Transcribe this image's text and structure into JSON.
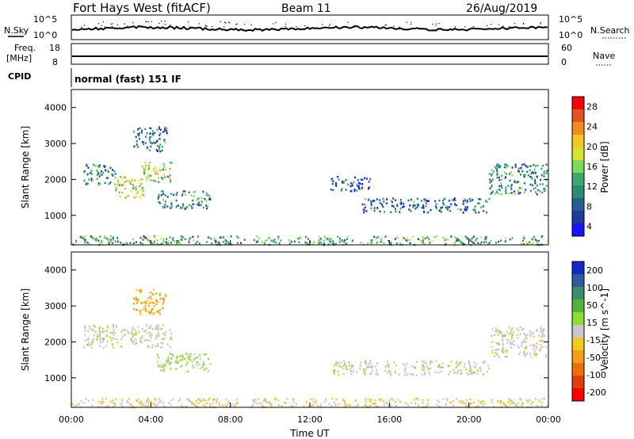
{
  "header": {
    "title": "Fort Hays West (fitACF)",
    "beam": "Beam 11",
    "date": "26/Aug/2019"
  },
  "strip_labels": {
    "nsky": "N.Sky",
    "nsearch": "N.Search",
    "freq": "Freq.",
    "freq_unit": "[MHz]",
    "nave": "Nave",
    "cpid": "CPID",
    "cpid_value": "normal (fast) 151 IF"
  },
  "noise_axis": {
    "left_ticks": [
      "10^5",
      "10^0"
    ],
    "right_ticks": [
      "10^5",
      "10^0"
    ]
  },
  "freq_axis": {
    "left_ticks": [
      "18",
      "8"
    ],
    "right_ticks": [
      "60",
      "0"
    ]
  },
  "colorbars": {
    "power": {
      "label": "Power [dB]",
      "ticks": [
        "28",
        "24",
        "20",
        "16",
        "12",
        "8",
        "4"
      ],
      "colors": [
        "#ff0000",
        "#e8501c",
        "#f08c1a",
        "#f5c81e",
        "#d7e32d",
        "#7ed957",
        "#3caa6e",
        "#2d8c78",
        "#22628c",
        "#1e3ca0",
        "#1414ff"
      ]
    },
    "velocity": {
      "label": "Velocity [m s^-1]",
      "ticks": [
        "200",
        "100",
        "50",
        "15",
        "-15",
        "-50",
        "-100",
        "-200"
      ],
      "colors": [
        "#1428c8",
        "#2d5aa0",
        "#3c8c6e",
        "#50b43c",
        "#8cdc32",
        "#c8c8c8",
        "#f5c81e",
        "#f5a014",
        "#f06e0a",
        "#e63c0a",
        "#ff0000"
      ]
    }
  },
  "chart_data": [
    {
      "type": "heatmap",
      "title": "Power",
      "xlabel": "Time UT",
      "ylabel": "Slant Range [km]",
      "xticks": [
        "00:00",
        "04:00",
        "08:00",
        "12:00",
        "16:00",
        "20:00",
        "00:00"
      ],
      "xlim": [
        0,
        24
      ],
      "yticks": [
        "1000",
        "2000",
        "3000",
        "4000"
      ],
      "ylim": [
        180,
        4500
      ],
      "units": "dB",
      "regions": [
        {
          "t": [
            0.6,
            2.2
          ],
          "range": [
            1850,
            2450
          ],
          "level": 10
        },
        {
          "t": [
            2.2,
            3.6
          ],
          "range": [
            1500,
            2100
          ],
          "level": 20
        },
        {
          "t": [
            3.5,
            5.0
          ],
          "range": [
            1900,
            2500
          ],
          "level": 18
        },
        {
          "t": [
            3.1,
            4.8
          ],
          "range": [
            2800,
            3500
          ],
          "level": 9
        },
        {
          "t": [
            4.3,
            7.0
          ],
          "range": [
            1200,
            1700
          ],
          "level": 11
        },
        {
          "t": [
            14.6,
            18.6
          ],
          "range": [
            1100,
            1500
          ],
          "level": 8
        },
        {
          "t": [
            18.6,
            21.0
          ],
          "range": [
            1100,
            1500
          ],
          "level": 8
        },
        {
          "t": [
            21.0,
            23.9
          ],
          "range": [
            1600,
            2450
          ],
          "level": 10
        },
        {
          "t": [
            13.0,
            15.0
          ],
          "range": [
            1700,
            2100
          ],
          "level": 6
        },
        {
          "t": [
            0.0,
            24.0
          ],
          "range": [
            200,
            450
          ],
          "level": 12
        }
      ]
    },
    {
      "type": "heatmap",
      "title": "Velocity",
      "xlabel": "Time UT",
      "ylabel": "Slant Range [km]",
      "xticks": [
        "00:00",
        "04:00",
        "08:00",
        "12:00",
        "16:00",
        "20:00",
        "00:00"
      ],
      "xlim": [
        0,
        24
      ],
      "yticks": [
        "1000",
        "2000",
        "3000",
        "4000"
      ],
      "ylim": [
        180,
        4500
      ],
      "units": "m s^-1",
      "regions": [
        {
          "t": [
            0.6,
            5.0
          ],
          "range": [
            1850,
            2500
          ],
          "level": 0
        },
        {
          "t": [
            3.1,
            4.8
          ],
          "range": [
            2800,
            3500
          ],
          "level": -80
        },
        {
          "t": [
            4.3,
            7.0
          ],
          "range": [
            1200,
            1700
          ],
          "level": 30
        },
        {
          "t": [
            13.0,
            21.0
          ],
          "range": [
            1100,
            1500
          ],
          "level": 0
        },
        {
          "t": [
            21.0,
            23.9
          ],
          "range": [
            1600,
            2450
          ],
          "level": 0
        },
        {
          "t": [
            0.0,
            24.0
          ],
          "range": [
            200,
            450
          ],
          "level": -20
        }
      ]
    }
  ]
}
